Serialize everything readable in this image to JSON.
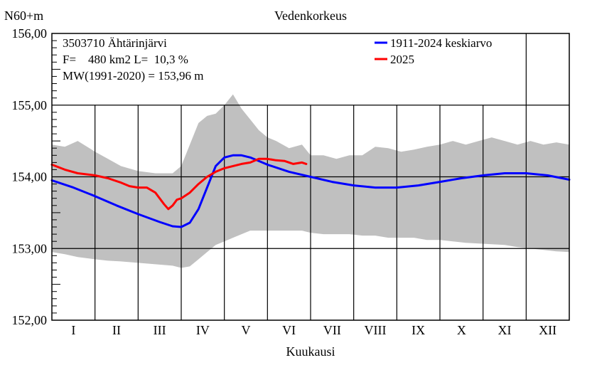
{
  "chart_data": {
    "type": "line",
    "title": "Vedenkorkeus",
    "ylabel": "N60+m",
    "xlabel": "Kuukausi",
    "ylim": [
      152.0,
      156.0
    ],
    "xlim": [
      0,
      12
    ],
    "x_unit": "months since 1 January",
    "yticks": [
      152.0,
      153.0,
      154.0,
      155.0
    ],
    "yticks_top": 156.0,
    "ytick_labels": [
      "152,00",
      "153,00",
      "154,00",
      "155,00"
    ],
    "ytick_top_label": "156,00",
    "months": [
      "I",
      "II",
      "III",
      "IV",
      "V",
      "VI",
      "VII",
      "VIII",
      "IX",
      "X",
      "XI",
      "XII"
    ],
    "grid": true,
    "info": {
      "station": "3503710 Ähtärinjärvi",
      "area": "F=    480 km2 L=  10,3 %",
      "mean": "MW(1991-2020) = 153,96 m"
    },
    "legend_position": "top-right",
    "band": {
      "color": "#c0c0c0",
      "x": [
        0,
        0.3,
        0.6,
        1.0,
        1.3,
        1.6,
        2.0,
        2.4,
        2.8,
        3.0,
        3.2,
        3.4,
        3.6,
        3.8,
        4.0,
        4.2,
        4.4,
        4.6,
        4.8,
        5.0,
        5.2,
        5.5,
        5.8,
        6.0,
        6.3,
        6.6,
        6.9,
        7.2,
        7.5,
        7.8,
        8.1,
        8.4,
        8.7,
        9.0,
        9.3,
        9.6,
        9.9,
        10.2,
        10.5,
        10.8,
        11.1,
        11.4,
        11.7,
        12.0
      ],
      "upper": [
        154.45,
        154.42,
        154.5,
        154.35,
        154.25,
        154.15,
        154.08,
        154.05,
        154.05,
        154.15,
        154.45,
        154.75,
        154.85,
        154.88,
        155.0,
        155.15,
        154.95,
        154.8,
        154.65,
        154.55,
        154.5,
        154.4,
        154.45,
        154.3,
        154.3,
        154.25,
        154.3,
        154.3,
        154.42,
        154.4,
        154.35,
        154.38,
        154.42,
        154.45,
        154.5,
        154.45,
        154.5,
        154.55,
        154.5,
        154.45,
        154.5,
        154.45,
        154.48,
        154.45
      ],
      "lower": [
        152.95,
        152.92,
        152.88,
        152.85,
        152.83,
        152.82,
        152.8,
        152.78,
        152.76,
        152.73,
        152.75,
        152.85,
        152.95,
        153.05,
        153.1,
        153.15,
        153.2,
        153.25,
        153.25,
        153.25,
        153.25,
        153.25,
        153.25,
        153.22,
        153.2,
        153.2,
        153.2,
        153.18,
        153.18,
        153.15,
        153.15,
        153.15,
        153.12,
        153.12,
        153.1,
        153.08,
        153.07,
        153.06,
        153.05,
        153.02,
        153.0,
        152.98,
        152.96,
        152.95
      ]
    },
    "series": [
      {
        "name": "1911-2024 keskiarvo",
        "color": "#0000ff",
        "x": [
          0,
          0.5,
          1.0,
          1.5,
          2.0,
          2.5,
          2.8,
          3.0,
          3.2,
          3.4,
          3.6,
          3.8,
          4.0,
          4.2,
          4.4,
          4.6,
          4.8,
          5.0,
          5.5,
          6.0,
          6.5,
          7.0,
          7.5,
          8.0,
          8.5,
          9.0,
          9.5,
          10.0,
          10.5,
          11.0,
          11.5,
          12.0
        ],
        "y": [
          153.95,
          153.85,
          153.73,
          153.6,
          153.48,
          153.37,
          153.31,
          153.3,
          153.36,
          153.55,
          153.85,
          154.15,
          154.27,
          154.3,
          154.3,
          154.27,
          154.22,
          154.17,
          154.07,
          154.0,
          153.93,
          153.88,
          153.85,
          153.85,
          153.88,
          153.93,
          153.98,
          154.02,
          154.05,
          154.05,
          154.02,
          153.96
        ]
      },
      {
        "name": "2025",
        "color": "#ff0000",
        "x": [
          0,
          0.3,
          0.6,
          1.0,
          1.3,
          1.6,
          1.8,
          2.0,
          2.2,
          2.4,
          2.6,
          2.7,
          2.8,
          2.9,
          3.0,
          3.2,
          3.4,
          3.6,
          3.8,
          4.0,
          4.2,
          4.4,
          4.6,
          4.8,
          5.0,
          5.2,
          5.4,
          5.6,
          5.8,
          5.9
        ],
        "y": [
          154.17,
          154.1,
          154.05,
          154.02,
          153.98,
          153.92,
          153.87,
          153.85,
          153.85,
          153.78,
          153.62,
          153.55,
          153.6,
          153.68,
          153.7,
          153.78,
          153.9,
          154.0,
          154.07,
          154.12,
          154.15,
          154.18,
          154.2,
          154.25,
          154.25,
          154.23,
          154.22,
          154.18,
          154.2,
          154.18
        ]
      }
    ]
  }
}
